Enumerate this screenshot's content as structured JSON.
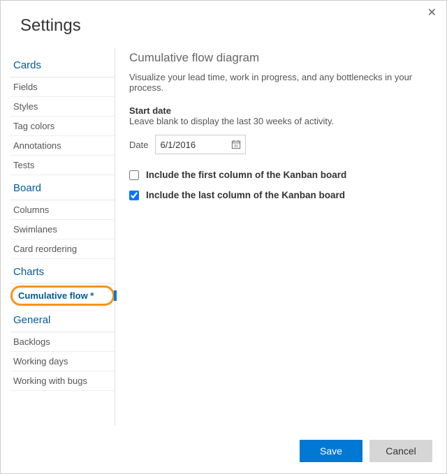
{
  "dialog": {
    "title": "Settings",
    "close_glyph": "✕"
  },
  "sidebar": {
    "groups": [
      {
        "label": "Cards",
        "items": [
          {
            "label": "Fields",
            "active": false
          },
          {
            "label": "Styles",
            "active": false
          },
          {
            "label": "Tag colors",
            "active": false
          },
          {
            "label": "Annotations",
            "active": false
          },
          {
            "label": "Tests",
            "active": false
          }
        ]
      },
      {
        "label": "Board",
        "items": [
          {
            "label": "Columns",
            "active": false
          },
          {
            "label": "Swimlanes",
            "active": false
          },
          {
            "label": "Card reordering",
            "active": false
          }
        ]
      },
      {
        "label": "Charts",
        "items": [
          {
            "label": "Cumulative flow *",
            "active": true,
            "highlighted": true
          }
        ]
      },
      {
        "label": "General",
        "items": [
          {
            "label": "Backlogs",
            "active": false
          },
          {
            "label": "Working days",
            "active": false
          },
          {
            "label": "Working with bugs",
            "active": false
          }
        ]
      }
    ]
  },
  "panel": {
    "title": "Cumulative flow diagram",
    "description": "Visualize your lead time, work in progress, and any bottlenecks in your process.",
    "start_date": {
      "label": "Start date",
      "help": "Leave blank to display the last 30 weeks of activity.",
      "field_label": "Date",
      "value": "6/1/2016"
    },
    "options": [
      {
        "label": "Include the first column of the Kanban board",
        "checked": false
      },
      {
        "label": "Include the last column of the Kanban board",
        "checked": true
      }
    ]
  },
  "footer": {
    "save": "Save",
    "cancel": "Cancel"
  },
  "colors": {
    "accent": "#0078d4",
    "link": "#005a9e",
    "highlight_ring": "#f7941d",
    "border": "#cccccc",
    "text": "#333333",
    "muted": "#666666"
  }
}
